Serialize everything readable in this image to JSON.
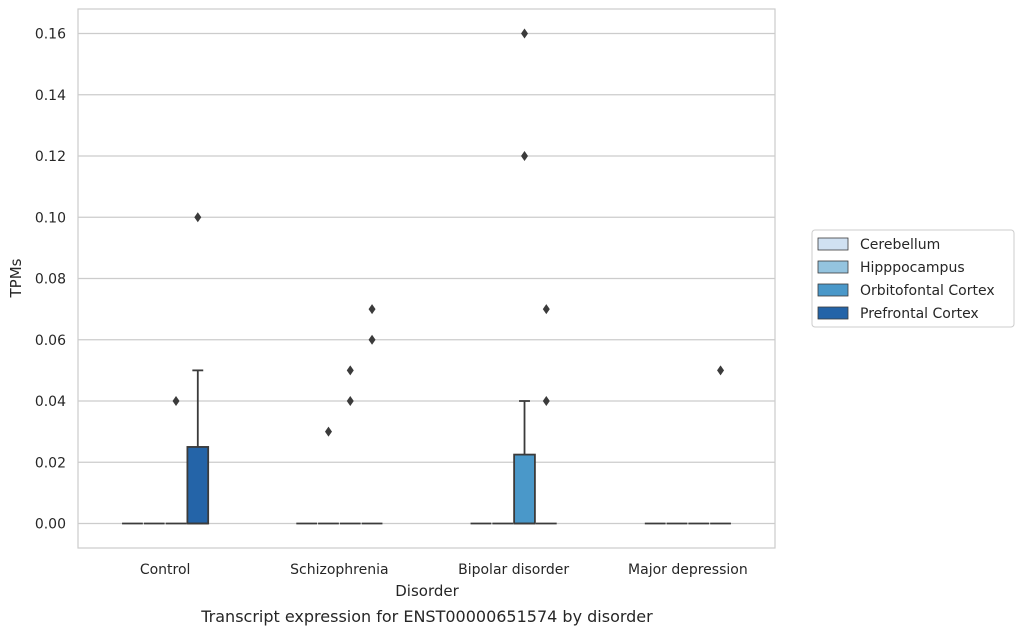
{
  "chart_data": {
    "type": "box",
    "caption": "Transcript expression for ENST00000651574 by disorder",
    "xlabel": "Disorder",
    "ylabel": "TPMs",
    "ylim": [
      -0.008,
      0.168
    ],
    "yticks": [
      "0.00",
      "0.02",
      "0.04",
      "0.06",
      "0.08",
      "0.10",
      "0.12",
      "0.14",
      "0.16"
    ],
    "categories": [
      "Control",
      "Schizophrenia",
      "Bipolar disorder",
      "Major depression"
    ],
    "grid": "horizontal",
    "legend_position": "right",
    "series": [
      {
        "name": "Cerebellum",
        "color": "#d0e1f2",
        "boxes": [
          {
            "category": "Control",
            "q1": 0,
            "median": 0,
            "q3": 0,
            "whisker_low": 0,
            "whisker_high": 0,
            "outliers": []
          },
          {
            "category": "Schizophrenia",
            "q1": 0,
            "median": 0,
            "q3": 0,
            "whisker_low": 0,
            "whisker_high": 0,
            "outliers": []
          },
          {
            "category": "Bipolar disorder",
            "q1": 0,
            "median": 0,
            "q3": 0,
            "whisker_low": 0,
            "whisker_high": 0,
            "outliers": []
          },
          {
            "category": "Major depression",
            "q1": 0,
            "median": 0,
            "q3": 0,
            "whisker_low": 0,
            "whisker_high": 0,
            "outliers": []
          }
        ]
      },
      {
        "name": "Hipppocampus",
        "color": "#94c4df",
        "boxes": [
          {
            "category": "Control",
            "q1": 0,
            "median": 0,
            "q3": 0,
            "whisker_low": 0,
            "whisker_high": 0,
            "outliers": []
          },
          {
            "category": "Schizophrenia",
            "q1": 0,
            "median": 0,
            "q3": 0,
            "whisker_low": 0,
            "whisker_high": 0,
            "outliers": [
              0.03
            ]
          },
          {
            "category": "Bipolar disorder",
            "q1": 0,
            "median": 0,
            "q3": 0,
            "whisker_low": 0,
            "whisker_high": 0,
            "outliers": []
          },
          {
            "category": "Major depression",
            "q1": 0,
            "median": 0,
            "q3": 0,
            "whisker_low": 0,
            "whisker_high": 0,
            "outliers": []
          }
        ]
      },
      {
        "name": "Orbitofontal Cortex",
        "color": "#4a98c9",
        "boxes": [
          {
            "category": "Control",
            "q1": 0,
            "median": 0,
            "q3": 0,
            "whisker_low": 0,
            "whisker_high": 0,
            "outliers": [
              0.04
            ]
          },
          {
            "category": "Schizophrenia",
            "q1": 0,
            "median": 0,
            "q3": 0,
            "whisker_low": 0,
            "whisker_high": 0,
            "outliers": [
              0.04,
              0.05
            ]
          },
          {
            "category": "Bipolar disorder",
            "q1": 0,
            "median": 0,
            "q3": 0.0225,
            "whisker_low": 0,
            "whisker_high": 0.04,
            "outliers": [
              0.12,
              0.16
            ]
          },
          {
            "category": "Major depression",
            "q1": 0,
            "median": 0,
            "q3": 0,
            "whisker_low": 0,
            "whisker_high": 0,
            "outliers": []
          }
        ]
      },
      {
        "name": "Prefrontal Cortex",
        "color": "#2464a8",
        "boxes": [
          {
            "category": "Control",
            "q1": 0,
            "median": 0,
            "q3": 0.025,
            "whisker_low": 0,
            "whisker_high": 0.05,
            "outliers": [
              0.1
            ]
          },
          {
            "category": "Schizophrenia",
            "q1": 0,
            "median": 0,
            "q3": 0,
            "whisker_low": 0,
            "whisker_high": 0,
            "outliers": [
              0.06,
              0.07
            ]
          },
          {
            "category": "Bipolar disorder",
            "q1": 0,
            "median": 0,
            "q3": 0,
            "whisker_low": 0,
            "whisker_high": 0,
            "outliers": [
              0.04,
              0.07
            ]
          },
          {
            "category": "Major depression",
            "q1": 0,
            "median": 0,
            "q3": 0,
            "whisker_low": 0,
            "whisker_high": 0,
            "outliers": [
              0.05
            ]
          }
        ]
      }
    ]
  }
}
